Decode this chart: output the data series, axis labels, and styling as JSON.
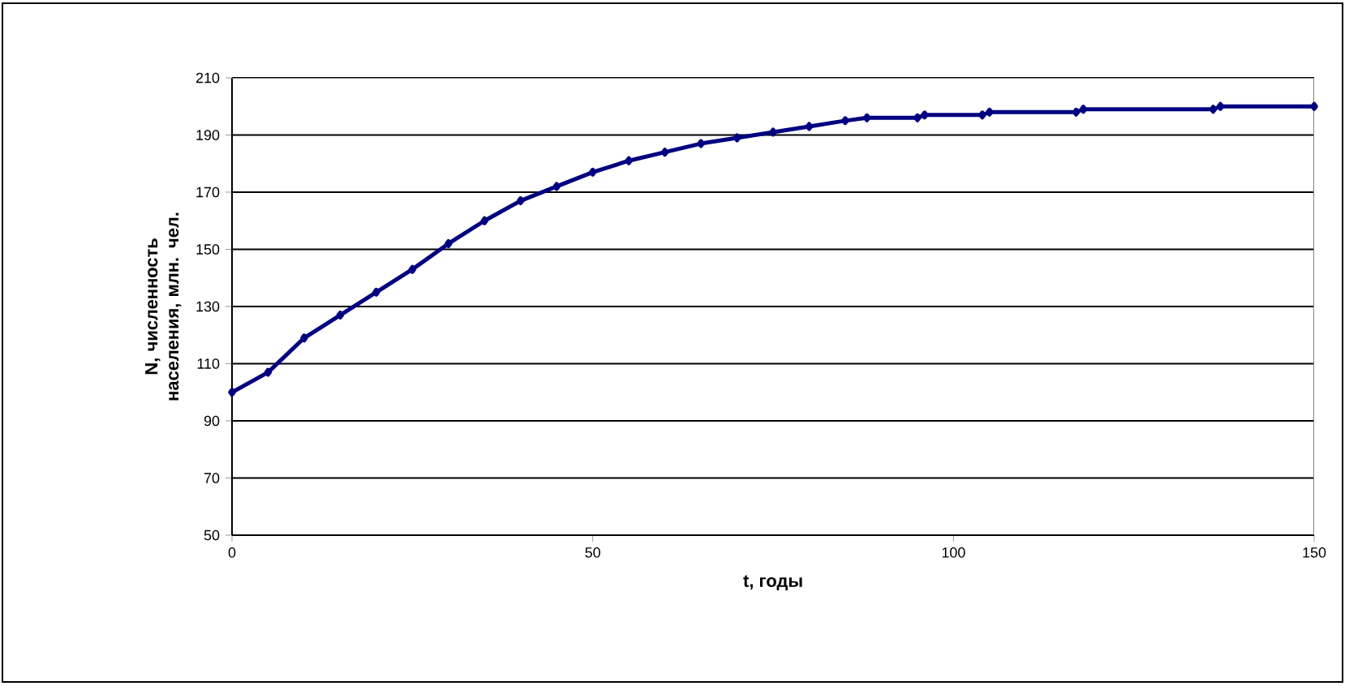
{
  "chart_data": {
    "type": "line",
    "xlabel": "t, годы",
    "ylabel": "N, численность населения, млн. чел.",
    "x": [
      0,
      5,
      10,
      15,
      20,
      25,
      30,
      35,
      40,
      45,
      50,
      55,
      60,
      65,
      70,
      75,
      80,
      85,
      88,
      95,
      96,
      104,
      105,
      117,
      118,
      136,
      137,
      150
    ],
    "series": [
      {
        "color": "#000080",
        "values": [
          100,
          107,
          119,
          127,
          135,
          143,
          152,
          160,
          167,
          172,
          177,
          181,
          184,
          187,
          189,
          191,
          193,
          195,
          196,
          196,
          197,
          197,
          198,
          198,
          199,
          199,
          200,
          200
        ]
      }
    ],
    "xlim": [
      0,
      150
    ],
    "ylim": [
      50,
      210
    ],
    "xticks": [
      0,
      50,
      100,
      150
    ],
    "yticks": [
      50,
      70,
      90,
      110,
      130,
      150,
      170,
      190,
      210
    ],
    "grid": "y",
    "marker": "diamond",
    "line_style": "solid"
  }
}
